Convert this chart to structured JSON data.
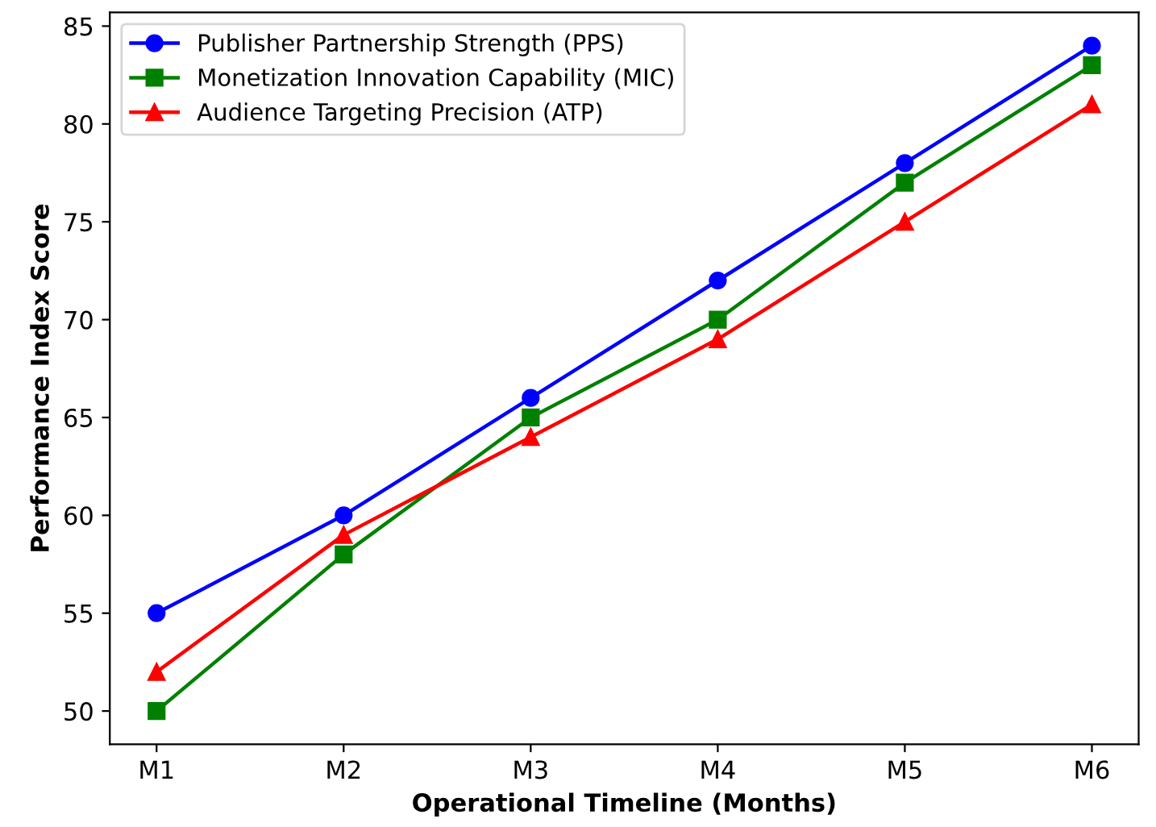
{
  "chart_data": {
    "type": "line",
    "xlabel": "Operational Timeline (Months)",
    "ylabel": "Performance Index Score",
    "categories": [
      "M1",
      "M2",
      "M3",
      "M4",
      "M5",
      "M6"
    ],
    "series": [
      {
        "name": "Publisher Partnership Strength (PPS)",
        "color": "#0000ff",
        "marker": "circle",
        "values": [
          55,
          60,
          66,
          72,
          78,
          84
        ]
      },
      {
        "name": "Monetization Innovation Capability (MIC)",
        "color": "#008000",
        "marker": "square",
        "values": [
          50,
          58,
          65,
          70,
          77,
          83
        ]
      },
      {
        "name": "Audience Targeting Precision (ATP)",
        "color": "#ff0000",
        "marker": "triangle",
        "values": [
          52,
          59,
          64,
          69,
          75,
          81
        ]
      }
    ],
    "ylim": [
      48.3,
      85.7
    ],
    "yticks": [
      50,
      55,
      60,
      65,
      70,
      75,
      80,
      85
    ],
    "grid": false,
    "legend": "top left",
    "line_style": "solid"
  }
}
